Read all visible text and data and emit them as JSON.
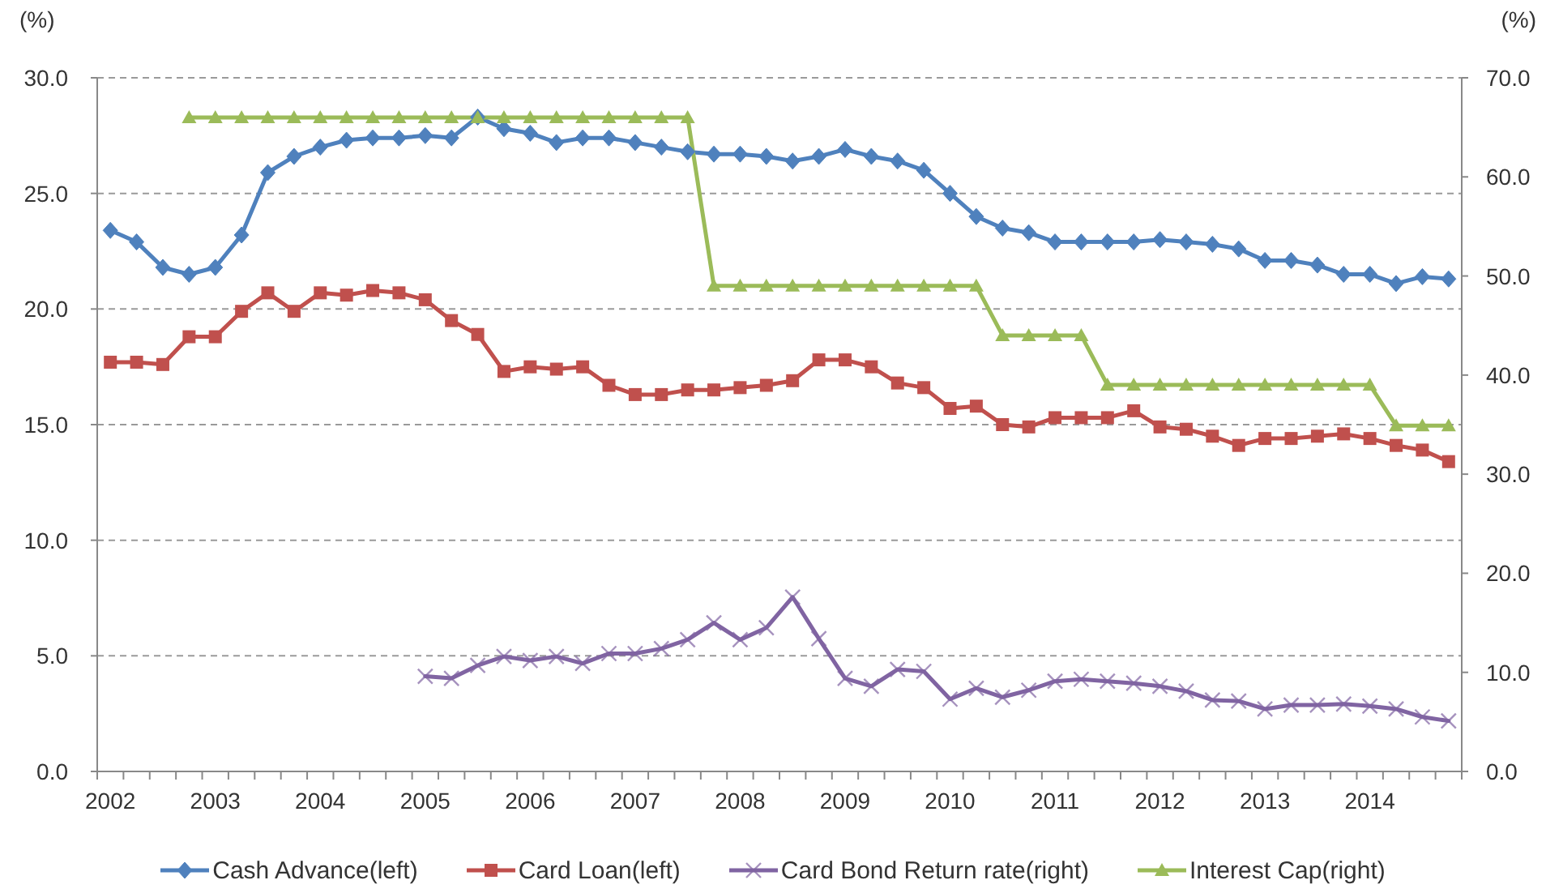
{
  "chart_data": {
    "type": "line",
    "categories": [
      "2002",
      null,
      null,
      null,
      "2003",
      null,
      null,
      null,
      "2004",
      null,
      null,
      null,
      "2005",
      null,
      null,
      null,
      "2006",
      null,
      null,
      null,
      "2007",
      null,
      null,
      null,
      "2008",
      null,
      null,
      null,
      "2009",
      null,
      null,
      null,
      "2010",
      null,
      null,
      null,
      "2011",
      null,
      null,
      null,
      "2012",
      null,
      null,
      null,
      "2013",
      null,
      null,
      null,
      "2014",
      null,
      null,
      null
    ],
    "ylabel": "(%)",
    "y2label": "(%)",
    "ylim": [
      0,
      30
    ],
    "yticks": [
      {
        "value": 0,
        "label": "0.0"
      },
      {
        "value": 5,
        "label": "5.0"
      },
      {
        "value": 10,
        "label": "10.0"
      },
      {
        "value": 15,
        "label": "15.0"
      },
      {
        "value": 20,
        "label": "20.0"
      },
      {
        "value": 25,
        "label": "25.0"
      },
      {
        "value": 30,
        "label": "30.0"
      }
    ],
    "y2lim": [
      0,
      70
    ],
    "y2ticks": [
      {
        "value": 0,
        "label": "0.0"
      },
      {
        "value": 10,
        "label": "10.0"
      },
      {
        "value": 20,
        "label": "20.0"
      },
      {
        "value": 30,
        "label": "30.0"
      },
      {
        "value": 40,
        "label": "40.0"
      },
      {
        "value": 50,
        "label": "50.0"
      },
      {
        "value": 60,
        "label": "60.0"
      },
      {
        "value": 70,
        "label": "70.0"
      }
    ],
    "grid": "y",
    "legend": "bottom",
    "series": [
      {
        "name": "Cash Advance(left)",
        "color": "#4f81bd",
        "marker": "diamond",
        "axis": "y",
        "values": [
          23.4,
          22.9,
          21.8,
          21.5,
          21.8,
          23.2,
          25.9,
          26.6,
          27.0,
          27.3,
          27.4,
          27.4,
          27.5,
          27.4,
          28.3,
          27.8,
          27.6,
          27.2,
          27.4,
          27.4,
          27.2,
          27.0,
          26.8,
          26.7,
          26.7,
          26.6,
          26.4,
          26.6,
          26.9,
          26.6,
          26.4,
          26.0,
          25.0,
          24.0,
          23.5,
          23.3,
          22.9,
          22.9,
          22.9,
          22.9,
          23.0,
          22.9,
          22.8,
          22.6,
          22.1,
          22.1,
          21.9,
          21.5,
          21.5,
          21.1,
          21.4,
          21.3
        ]
      },
      {
        "name": "Card Loan(left)",
        "color": "#c0504d",
        "marker": "square",
        "axis": "y",
        "values": [
          17.7,
          17.7,
          17.6,
          18.8,
          18.8,
          19.9,
          20.7,
          19.9,
          20.7,
          20.6,
          20.8,
          20.7,
          20.4,
          19.5,
          18.9,
          17.3,
          17.5,
          17.4,
          17.5,
          16.7,
          16.3,
          16.3,
          16.5,
          16.5,
          16.6,
          16.7,
          16.9,
          17.8,
          17.8,
          17.5,
          16.8,
          16.6,
          15.7,
          15.8,
          15.0,
          14.9,
          15.3,
          15.3,
          15.3,
          15.6,
          14.9,
          14.8,
          14.5,
          14.1,
          14.4,
          14.4,
          14.5,
          14.6,
          14.4,
          14.1,
          13.9,
          13.4
        ]
      },
      {
        "name": "Card Bond Return rate(right)",
        "color": "#8064a2",
        "marker": "cross",
        "axis": "y2",
        "values": [
          null,
          null,
          null,
          null,
          null,
          null,
          null,
          null,
          null,
          null,
          null,
          null,
          9.6,
          9.4,
          10.7,
          11.6,
          11.2,
          11.6,
          10.9,
          11.9,
          11.9,
          12.4,
          13.3,
          15.0,
          13.3,
          14.5,
          17.6,
          13.4,
          9.4,
          8.6,
          10.3,
          10.1,
          7.3,
          8.4,
          7.5,
          8.2,
          9.1,
          9.3,
          9.1,
          8.9,
          8.6,
          8.1,
          7.2,
          7.1,
          6.3,
          6.7,
          6.7,
          6.8,
          6.6,
          6.3,
          5.5,
          5.1
        ]
      },
      {
        "name": "Interest Cap(right)",
        "color": "#9bbb59",
        "marker": "triangle",
        "axis": "y2",
        "values": [
          null,
          null,
          null,
          66,
          66,
          66,
          66,
          66,
          66,
          66,
          66,
          66,
          66,
          66,
          66,
          66,
          66,
          66,
          66,
          66,
          66,
          66,
          66,
          49,
          49,
          49,
          49,
          49,
          49,
          49,
          49,
          49,
          49,
          49,
          44,
          44,
          44,
          44,
          39,
          39,
          39,
          39,
          39,
          39,
          39,
          39,
          39,
          39,
          39,
          34.9,
          34.9,
          34.9
        ]
      }
    ]
  }
}
